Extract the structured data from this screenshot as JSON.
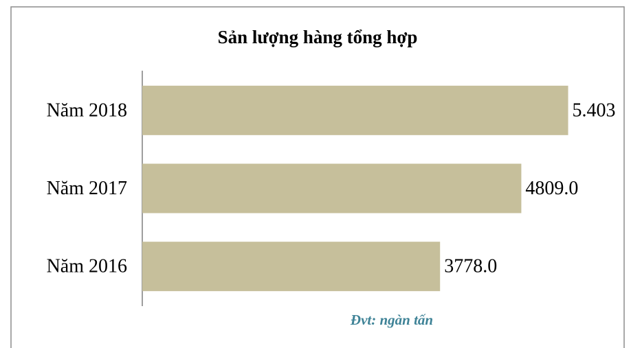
{
  "chart_data": {
    "type": "bar",
    "orientation": "horizontal",
    "title": "Sản lượng hàng tổng hợp",
    "categories": [
      "Năm 2018",
      "Năm 2017",
      "Năm 2016"
    ],
    "values": [
      5403,
      4809,
      3778
    ],
    "value_labels": [
      "5.403",
      "4809.0",
      "3778.0"
    ],
    "color": "#c6bf9b",
    "xlim": [
      0,
      6000
    ],
    "note": "Đvt: ngàn tấn"
  }
}
